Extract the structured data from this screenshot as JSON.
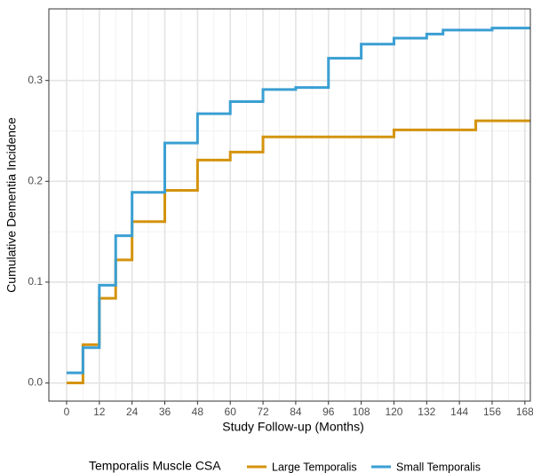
{
  "chart_data": {
    "type": "step",
    "xlabel": "Study Follow-up (Months)",
    "ylabel": "Cumulative Dementia Incidence",
    "legend_title": "Temporalis Muscle CSA",
    "legend": "bottom",
    "grid": true,
    "xlim": [
      -6.5,
      170
    ],
    "xticks": [
      0,
      12,
      24,
      36,
      48,
      60,
      72,
      84,
      96,
      108,
      120,
      132,
      144,
      156,
      168
    ],
    "ylim": [
      -0.018,
      0.371
    ],
    "yticks": [
      {
        "value": 0,
        "label": "0.0"
      },
      {
        "value": 0.1,
        "label": "0.1"
      },
      {
        "value": 0.2,
        "label": "0.2"
      },
      {
        "value": 0.3,
        "label": "0.3"
      }
    ],
    "series": [
      {
        "name": "Large Temporalis",
        "color": "#d4930d",
        "x": [
          0,
          6,
          12,
          18,
          24,
          36,
          48,
          60,
          72,
          120,
          150
        ],
        "values": [
          0,
          0.038,
          0.084,
          0.122,
          0.16,
          0.191,
          0.221,
          0.229,
          0.244,
          0.251,
          0.26
        ]
      },
      {
        "name": "Small Temporalis",
        "color": "#3a9fd3",
        "x": [
          0,
          6,
          12,
          18,
          24,
          36,
          48,
          60,
          72,
          84,
          96,
          108,
          120,
          132,
          138,
          156
        ],
        "values": [
          0.01,
          0.035,
          0.097,
          0.146,
          0.189,
          0.238,
          0.267,
          0.279,
          0.291,
          0.293,
          0.322,
          0.336,
          0.342,
          0.346,
          0.35,
          0.352
        ]
      }
    ]
  }
}
